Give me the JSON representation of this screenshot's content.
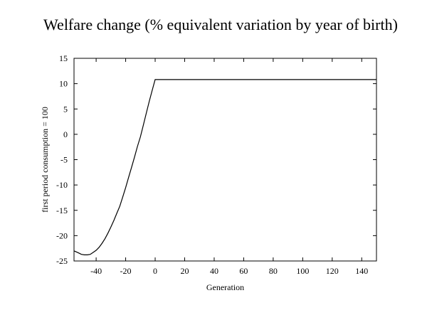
{
  "chart_data": {
    "type": "line",
    "title": "Welfare change (% equivalent variation by year of birth)",
    "xlabel": "Generation",
    "ylabel": "first period consumption = 100",
    "xlim": [
      -55,
      150
    ],
    "ylim": [
      -25,
      15
    ],
    "xticks": [
      -40,
      -20,
      0,
      20,
      40,
      60,
      80,
      100,
      120,
      140
    ],
    "yticks": [
      15,
      10,
      5,
      0,
      -5,
      -10,
      -15,
      -20,
      -25
    ],
    "grid": false,
    "legend": "none",
    "series": [
      {
        "color": "#000000",
        "x": [
          -55,
          -52,
          -50,
          -48,
          -46,
          -44,
          -42,
          -40,
          -38,
          -36,
          -34,
          -32,
          -30,
          -28,
          -26,
          -24,
          -22,
          -20,
          -18,
          -16,
          -14,
          -12,
          -10,
          -8,
          -6,
          -4,
          -2,
          0,
          150
        ],
        "y": [
          -23.0,
          -23.4,
          -23.7,
          -23.8,
          -23.8,
          -23.7,
          -23.3,
          -22.9,
          -22.3,
          -21.5,
          -20.6,
          -19.5,
          -18.3,
          -17.0,
          -15.6,
          -14.2,
          -12.4,
          -10.5,
          -8.5,
          -6.5,
          -4.5,
          -2.4,
          -0.5,
          1.8,
          4.2,
          6.5,
          8.7,
          10.8,
          10.8
        ]
      }
    ]
  }
}
